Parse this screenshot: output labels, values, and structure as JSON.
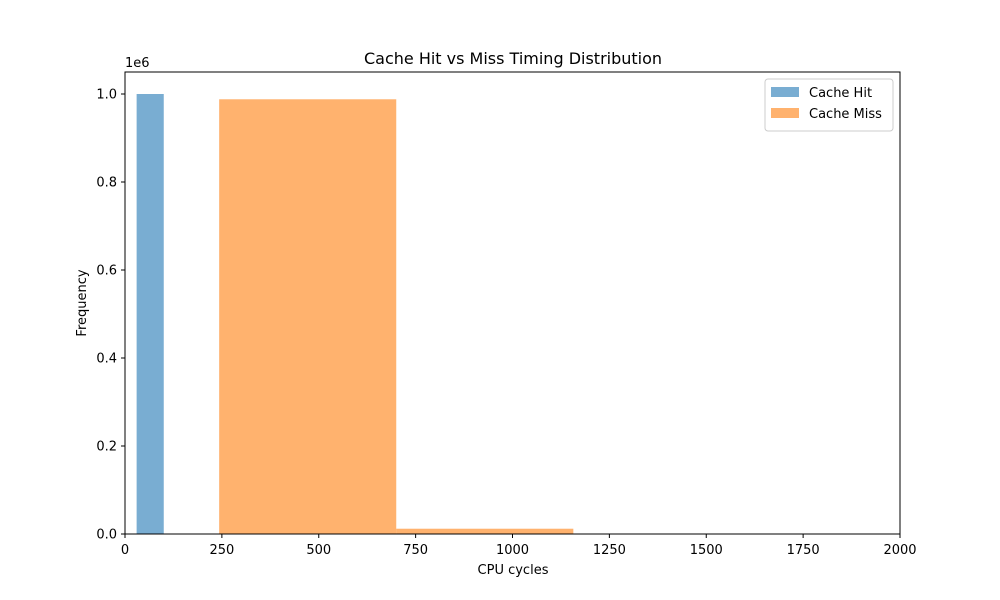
{
  "chart_data": {
    "type": "bar",
    "title": "Cache Hit vs Miss Timing Distribution",
    "xlabel": "CPU cycles",
    "ylabel": "Frequency",
    "y_scale_label": "1e6",
    "xlim": [
      0,
      2000
    ],
    "ylim": [
      0,
      1050000
    ],
    "x_ticks": [
      0,
      250,
      500,
      750,
      1000,
      1250,
      1500,
      1750,
      2000
    ],
    "x_tick_labels": [
      "0",
      "250",
      "500",
      "750",
      "1000",
      "1250",
      "1500",
      "1750",
      "2000"
    ],
    "y_ticks": [
      0,
      200000,
      400000,
      600000,
      800000,
      1000000
    ],
    "y_tick_labels": [
      "0.0",
      "0.2",
      "0.4",
      "0.6",
      "0.8",
      "1.0"
    ],
    "grid": false,
    "legend_position": "top-right",
    "series": [
      {
        "name": "Cache Hit",
        "color": "#1f77b4",
        "opacity": 0.6,
        "bins": [
          {
            "start": 30,
            "end": 100,
            "count": 1000000
          }
        ]
      },
      {
        "name": "Cache Miss",
        "color": "#ff7f0e",
        "opacity": 0.6,
        "bins": [
          {
            "start": 243,
            "end": 700,
            "count": 988000
          },
          {
            "start": 700,
            "end": 1157,
            "count": 12000
          }
        ]
      }
    ]
  }
}
